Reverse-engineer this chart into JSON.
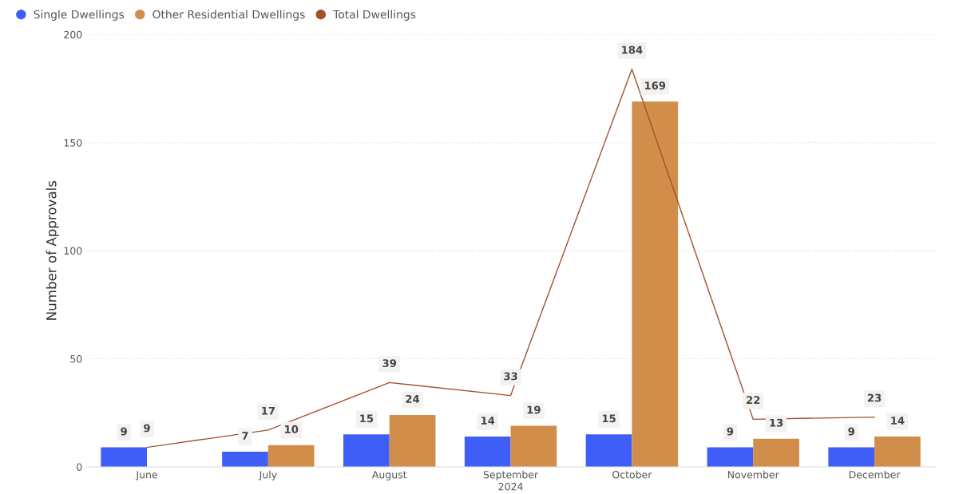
{
  "chart_data": {
    "type": "bar",
    "xlabel": "2024",
    "ylabel": "Number of Approvals",
    "categories": [
      "June",
      "July",
      "August",
      "September",
      "October",
      "November",
      "December"
    ],
    "series": [
      {
        "name": "Single Dwellings",
        "color": "#3f5ef8",
        "values": [
          9,
          7,
          15,
          14,
          15,
          9,
          9
        ]
      },
      {
        "name": "Other Residential Dwellings",
        "color": "#d18e4a",
        "values": [
          null,
          10,
          24,
          19,
          169,
          13,
          14
        ]
      },
      {
        "name": "Total Dwellings",
        "type": "line",
        "color": "#a0522d",
        "values": [
          9,
          17,
          39,
          33,
          184,
          22,
          23
        ]
      }
    ],
    "ylim": [
      0,
      200
    ],
    "yticks": [
      0,
      50,
      100,
      150,
      200
    ],
    "grid": "y",
    "legend": "top left",
    "data_labels": true,
    "marker": "none",
    "line_style": "solid"
  }
}
